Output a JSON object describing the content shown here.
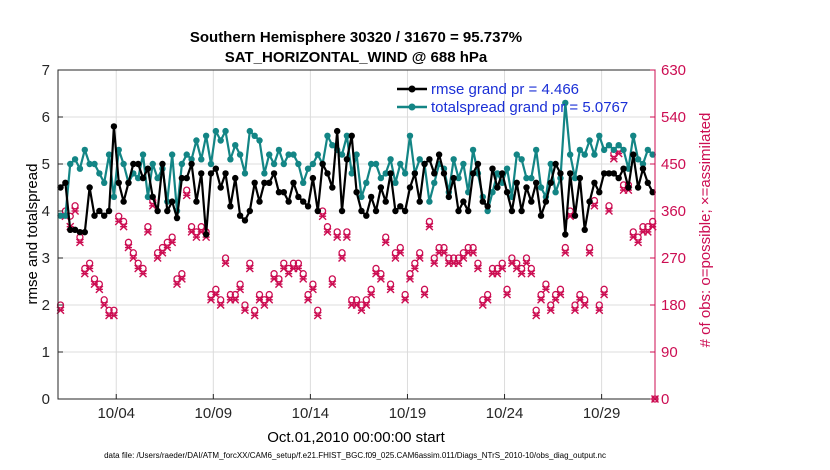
{
  "chart_data": {
    "type": "line",
    "title_line1": "Southern Hemisphere 30320 / 31670 = 95.737%",
    "title_line2": "SAT_HORIZONTAL_WIND @ 688 hPa",
    "xlabel": "Oct.01,2010 00:00:00 start",
    "ylabel_left": "rmse and totalspread",
    "ylabel_right": "# of obs: o=possible; ×=assimilated",
    "footer": "data file: /Users/raeder/DAI/ATM_forcXX/CAM6_setup/f.e21.FHIST_BGC.f09_025.CAM6assim.011/Diags_NTrS_2010-10/obs_diag_output.nc",
    "x_ticks": [
      "10/04",
      "10/09",
      "10/14",
      "10/19",
      "10/24",
      "10/29"
    ],
    "x_tick_days": [
      4,
      9,
      14,
      19,
      24,
      29
    ],
    "xlim": [
      1.0,
      31.75
    ],
    "ylim_left": [
      0,
      7
    ],
    "y_ticks_left": [
      "0",
      "1",
      "2",
      "3",
      "4",
      "5",
      "6",
      "7"
    ],
    "ylim_right": [
      0,
      630
    ],
    "y_ticks_right": [
      "0",
      "90",
      "180",
      "270",
      "360",
      "450",
      "540",
      "630"
    ],
    "grid": true,
    "colors": {
      "rmse": "#000000",
      "spread": "#138585",
      "obs": "#cc0d52",
      "legend_text": "#1a2fd6",
      "right_axis": "#cc0d52"
    },
    "series": [
      {
        "name": "rmse grand pr = 4.466",
        "x": [
          1.13,
          1.38,
          1.63,
          1.88,
          2.13,
          2.38,
          2.63,
          2.88,
          3.13,
          3.38,
          3.63,
          3.88,
          4.13,
          4.38,
          4.63,
          4.88,
          5.13,
          5.38,
          5.63,
          5.88,
          6.13,
          6.38,
          6.63,
          6.88,
          7.13,
          7.38,
          7.63,
          7.88,
          8.13,
          8.38,
          8.63,
          8.88,
          9.13,
          9.38,
          9.63,
          9.88,
          10.13,
          10.38,
          10.63,
          10.88,
          11.13,
          11.38,
          11.63,
          11.88,
          12.13,
          12.38,
          12.63,
          12.88,
          13.13,
          13.38,
          13.63,
          13.88,
          14.13,
          14.38,
          14.63,
          14.88,
          15.13,
          15.38,
          15.63,
          15.88,
          16.13,
          16.38,
          16.63,
          16.88,
          17.13,
          17.38,
          17.63,
          17.88,
          18.13,
          18.38,
          18.63,
          18.88,
          19.13,
          19.38,
          19.63,
          19.88,
          20.13,
          20.38,
          20.63,
          20.88,
          21.13,
          21.38,
          21.63,
          21.88,
          22.13,
          22.38,
          22.63,
          22.88,
          23.13,
          23.38,
          23.63,
          23.88,
          24.13,
          24.38,
          24.63,
          24.88,
          25.13,
          25.38,
          25.63,
          25.88,
          26.13,
          26.38,
          26.63,
          26.88,
          27.13,
          27.38,
          27.63,
          27.88,
          28.13,
          28.38,
          28.63,
          28.88,
          29.13,
          29.38,
          29.63,
          29.88,
          30.13,
          30.38,
          30.63,
          30.88,
          31.13,
          31.38,
          31.63
        ],
        "values": [
          4.5,
          4.6,
          3.6,
          3.6,
          3.55,
          3.55,
          4.5,
          3.9,
          4.0,
          3.9,
          4.0,
          5.8,
          4.6,
          4.2,
          4.6,
          5.0,
          5.0,
          4.7,
          4.9,
          4.3,
          4.0,
          5.0,
          4.0,
          4.2,
          3.85,
          4.7,
          4.7,
          5.0,
          4.2,
          4.8,
          3.5,
          4.8,
          4.9,
          4.5,
          4.8,
          4.1,
          4.7,
          3.9,
          3.8,
          4.0,
          4.6,
          4.2,
          4.6,
          4.6,
          4.8,
          4.4,
          4.4,
          4.2,
          4.6,
          4.3,
          4.2,
          4.1,
          4.7,
          4.0,
          5.0,
          4.8,
          4.5,
          5.7,
          4.0,
          5.1,
          5.6,
          4.4,
          4.0,
          3.9,
          4.3,
          4.0,
          4.5,
          4.2,
          4.8,
          4.0,
          4.1,
          4.0,
          4.5,
          4.8,
          4.2,
          5.0,
          5.1,
          4.8,
          5.2,
          4.8,
          4.3,
          4.7,
          4.0,
          4.2,
          4.0,
          4.8,
          5.0,
          4.2,
          4.1,
          4.9,
          4.5,
          4.8,
          4.4,
          4.0,
          4.6,
          4.0,
          4.5,
          4.2,
          4.6,
          3.9,
          4.2,
          4.6,
          5.0,
          4.8,
          3.5,
          4.8,
          3.9,
          4.7,
          3.6,
          4.2,
          4.6,
          4.4,
          4.8,
          4.8,
          4.8,
          4.7,
          4.9,
          4.5,
          5.2,
          4.5,
          4.9,
          4.6,
          4.4
        ],
        "marker": "filled-circle"
      },
      {
        "name": "totalspread grand pr = 5.0767",
        "x": [
          1.13,
          1.38,
          1.63,
          1.88,
          2.13,
          2.38,
          2.63,
          2.88,
          3.13,
          3.38,
          3.63,
          3.88,
          4.13,
          4.38,
          4.63,
          4.88,
          5.13,
          5.38,
          5.63,
          5.88,
          6.13,
          6.38,
          6.63,
          6.88,
          7.13,
          7.38,
          7.63,
          7.88,
          8.13,
          8.38,
          8.63,
          8.88,
          9.13,
          9.38,
          9.63,
          9.88,
          10.13,
          10.38,
          10.63,
          10.88,
          11.13,
          11.38,
          11.63,
          11.88,
          12.13,
          12.38,
          12.63,
          12.88,
          13.13,
          13.38,
          13.63,
          13.88,
          14.13,
          14.38,
          14.63,
          14.88,
          15.13,
          15.38,
          15.63,
          15.88,
          16.13,
          16.38,
          16.63,
          16.88,
          17.13,
          17.38,
          17.63,
          17.88,
          18.13,
          18.38,
          18.63,
          18.88,
          19.13,
          19.38,
          19.63,
          19.88,
          20.13,
          20.38,
          20.63,
          20.88,
          21.13,
          21.38,
          21.63,
          21.88,
          22.13,
          22.38,
          22.63,
          22.88,
          23.13,
          23.38,
          23.63,
          23.88,
          24.13,
          24.38,
          24.63,
          24.88,
          25.13,
          25.38,
          25.63,
          25.88,
          26.13,
          26.38,
          26.63,
          26.88,
          27.13,
          27.38,
          27.63,
          27.88,
          28.13,
          28.38,
          28.63,
          28.88,
          29.13,
          29.38,
          29.63,
          29.88,
          30.13,
          30.38,
          30.63,
          30.88,
          31.13,
          31.38,
          31.63
        ],
        "values": [
          3.9,
          3.9,
          5.0,
          5.1,
          4.9,
          5.3,
          5.0,
          5.0,
          4.8,
          4.6,
          5.2,
          4.3,
          5.3,
          5.0,
          4.6,
          4.8,
          4.7,
          5.2,
          4.3,
          5.0,
          4.7,
          4.9,
          4.2,
          5.2,
          4.0,
          5.0,
          5.2,
          5.1,
          5.5,
          5.1,
          5.6,
          5.0,
          5.7,
          5.5,
          5.7,
          5.1,
          5.4,
          5.2,
          4.8,
          5.7,
          5.6,
          5.5,
          4.8,
          5.2,
          5.0,
          5.3,
          5.0,
          5.2,
          5.2,
          5.0,
          4.6,
          4.9,
          5.0,
          5.2,
          5.0,
          5.6,
          5.4,
          5.3,
          5.2,
          5.6,
          4.8,
          5.2,
          4.3,
          4.6,
          5.0,
          5.0,
          4.7,
          4.8,
          5.1,
          4.6,
          5.0,
          4.8,
          5.6,
          4.8,
          5.1,
          5.0,
          4.2,
          4.6,
          5.0,
          4.9,
          4.4,
          5.1,
          4.7,
          5.0,
          4.4,
          5.3,
          4.8,
          4.3,
          4.0,
          4.4,
          4.8,
          4.6,
          4.9,
          4.3,
          5.2,
          5.1,
          4.7,
          4.7,
          5.3,
          4.5,
          4.3,
          5.0,
          4.4,
          4.7,
          6.3,
          5.2,
          4.7,
          5.3,
          5.2,
          5.5,
          5.2,
          5.6,
          5.3,
          5.4,
          5.3,
          5.4,
          5.3,
          4.9,
          5.6,
          5.1,
          5.0,
          5.3,
          5.2
        ],
        "marker": "filled-circle"
      }
    ],
    "obs_possible": {
      "x": [
        1.13,
        1.38,
        1.63,
        1.88,
        2.13,
        2.38,
        2.63,
        2.88,
        3.13,
        3.38,
        3.63,
        3.88,
        4.13,
        4.38,
        4.63,
        4.88,
        5.13,
        5.38,
        5.63,
        5.88,
        6.13,
        6.38,
        6.63,
        6.88,
        7.13,
        7.38,
        7.63,
        7.88,
        8.13,
        8.38,
        8.63,
        8.88,
        9.13,
        9.38,
        9.63,
        9.88,
        10.13,
        10.38,
        10.63,
        10.88,
        11.13,
        11.38,
        11.63,
        11.88,
        12.13,
        12.38,
        12.63,
        12.88,
        13.13,
        13.38,
        13.63,
        13.88,
        14.13,
        14.38,
        14.63,
        14.88,
        15.13,
        15.38,
        15.63,
        15.88,
        16.13,
        16.38,
        16.63,
        16.88,
        17.13,
        17.38,
        17.63,
        17.88,
        18.13,
        18.38,
        18.63,
        18.88,
        19.13,
        19.38,
        19.63,
        19.88,
        20.13,
        20.38,
        20.63,
        20.88,
        21.13,
        21.38,
        21.63,
        21.88,
        22.13,
        22.38,
        22.63,
        22.88,
        23.13,
        23.38,
        23.63,
        23.88,
        24.13,
        24.38,
        24.63,
        24.88,
        25.13,
        25.38,
        25.63,
        25.88,
        26.13,
        26.38,
        26.63,
        26.88,
        27.13,
        27.38,
        27.63,
        27.88,
        28.13,
        28.38,
        28.63,
        28.88,
        29.13,
        29.38,
        29.63,
        29.88,
        30.13,
        30.38,
        30.63,
        30.88,
        31.13,
        31.38,
        31.63,
        31.75
      ],
      "values": [
        180,
        360,
        350,
        370,
        310,
        250,
        260,
        230,
        220,
        190,
        170,
        170,
        350,
        340,
        300,
        280,
        260,
        250,
        330,
        380,
        280,
        290,
        300,
        310,
        230,
        240,
        400,
        330,
        320,
        330,
        320,
        200,
        210,
        190,
        270,
        200,
        200,
        220,
        180,
        260,
        170,
        200,
        190,
        200,
        240,
        230,
        260,
        250,
        260,
        260,
        240,
        200,
        220,
        170,
        360,
        330,
        230,
        320,
        280,
        320,
        190,
        190,
        180,
        190,
        210,
        250,
        240,
        310,
        220,
        280,
        290,
        200,
        240,
        260,
        280,
        210,
        340,
        270,
        290,
        290,
        270,
        270,
        270,
        280,
        290,
        290,
        260,
        190,
        200,
        250,
        250,
        260,
        210,
        270,
        260,
        250,
        270,
        250,
        170,
        200,
        220,
        180,
        200,
        210,
        290,
        360,
        180,
        200,
        190,
        290,
        380,
        180,
        210,
        370,
        470,
        480,
        410,
        410,
        320,
        310,
        330,
        330,
        340,
        0
      ]
    },
    "obs_assimilated": {
      "x": [
        1.13,
        1.38,
        1.63,
        1.88,
        2.13,
        2.38,
        2.63,
        2.88,
        3.13,
        3.38,
        3.63,
        3.88,
        4.13,
        4.38,
        4.63,
        4.88,
        5.13,
        5.38,
        5.63,
        5.88,
        6.13,
        6.38,
        6.63,
        6.88,
        7.13,
        7.38,
        7.63,
        7.88,
        8.13,
        8.38,
        8.63,
        8.88,
        9.13,
        9.38,
        9.63,
        9.88,
        10.13,
        10.38,
        10.63,
        10.88,
        11.13,
        11.38,
        11.63,
        11.88,
        12.13,
        12.38,
        12.63,
        12.88,
        13.13,
        13.38,
        13.63,
        13.88,
        14.13,
        14.38,
        14.63,
        14.88,
        15.13,
        15.38,
        15.63,
        15.88,
        16.13,
        16.38,
        16.63,
        16.88,
        17.13,
        17.38,
        17.63,
        17.88,
        18.13,
        18.38,
        18.63,
        18.88,
        19.13,
        19.38,
        19.63,
        19.88,
        20.13,
        20.38,
        20.63,
        20.88,
        21.13,
        21.38,
        21.63,
        21.88,
        22.13,
        22.38,
        22.63,
        22.88,
        23.13,
        23.38,
        23.63,
        23.88,
        24.13,
        24.38,
        24.63,
        24.88,
        25.13,
        25.38,
        25.63,
        25.88,
        26.13,
        26.38,
        26.63,
        26.88,
        27.13,
        27.38,
        27.63,
        27.88,
        28.13,
        28.38,
        28.63,
        28.88,
        29.13,
        29.38,
        29.63,
        29.88,
        30.13,
        30.38,
        30.63,
        30.88,
        31.13,
        31.38,
        31.63,
        31.75
      ],
      "values": [
        170,
        350,
        330,
        360,
        300,
        240,
        250,
        220,
        210,
        180,
        160,
        160,
        340,
        330,
        290,
        270,
        250,
        240,
        320,
        370,
        270,
        280,
        290,
        300,
        220,
        230,
        390,
        320,
        310,
        320,
        310,
        190,
        200,
        180,
        260,
        190,
        190,
        210,
        170,
        250,
        160,
        190,
        180,
        190,
        230,
        220,
        250,
        240,
        250,
        250,
        230,
        190,
        210,
        160,
        350,
        320,
        220,
        310,
        270,
        310,
        180,
        180,
        170,
        180,
        200,
        240,
        230,
        300,
        210,
        270,
        280,
        190,
        230,
        250,
        270,
        200,
        330,
        260,
        280,
        280,
        260,
        260,
        260,
        270,
        280,
        280,
        250,
        180,
        190,
        240,
        240,
        250,
        200,
        260,
        250,
        240,
        260,
        240,
        160,
        190,
        210,
        170,
        190,
        200,
        280,
        350,
        170,
        190,
        180,
        280,
        370,
        170,
        200,
        360,
        460,
        470,
        400,
        400,
        310,
        300,
        320,
        320,
        330,
        0
      ]
    }
  }
}
